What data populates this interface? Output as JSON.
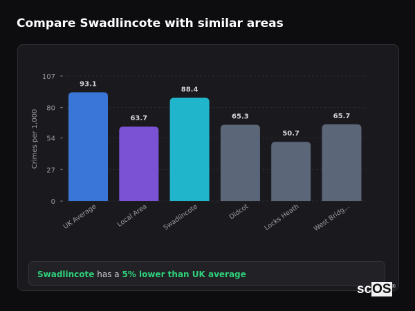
{
  "title": "Compare Swadlincote with similar areas",
  "chart_data": {
    "type": "bar",
    "categories": [
      "UK Average",
      "Local Area",
      "Swadlincote",
      "Didcot",
      "Locks Heath",
      "West Bridg..."
    ],
    "values": [
      93.1,
      63.7,
      88.4,
      65.3,
      50.7,
      65.7
    ],
    "data_labels": [
      "93.1",
      "63.7",
      "88.4",
      "65.3",
      "50.7",
      "65.7"
    ],
    "colors": [
      "#3a76d8",
      "#7b52d4",
      "#21b5cc",
      "#5b6679",
      "#5b6679",
      "#5b6679"
    ],
    "ylabel": "Crimes per 1,000",
    "xlabel": "",
    "ylim": [
      0,
      107
    ],
    "yticks": [
      0,
      27,
      54,
      80,
      107
    ],
    "grid": true
  },
  "summary": {
    "place": "Swadlincote",
    "middle": " has a ",
    "comparison": "5% lower than UK average"
  },
  "logo": {
    "text_a": "sc",
    "text_b": "OS",
    "mark": "®"
  }
}
